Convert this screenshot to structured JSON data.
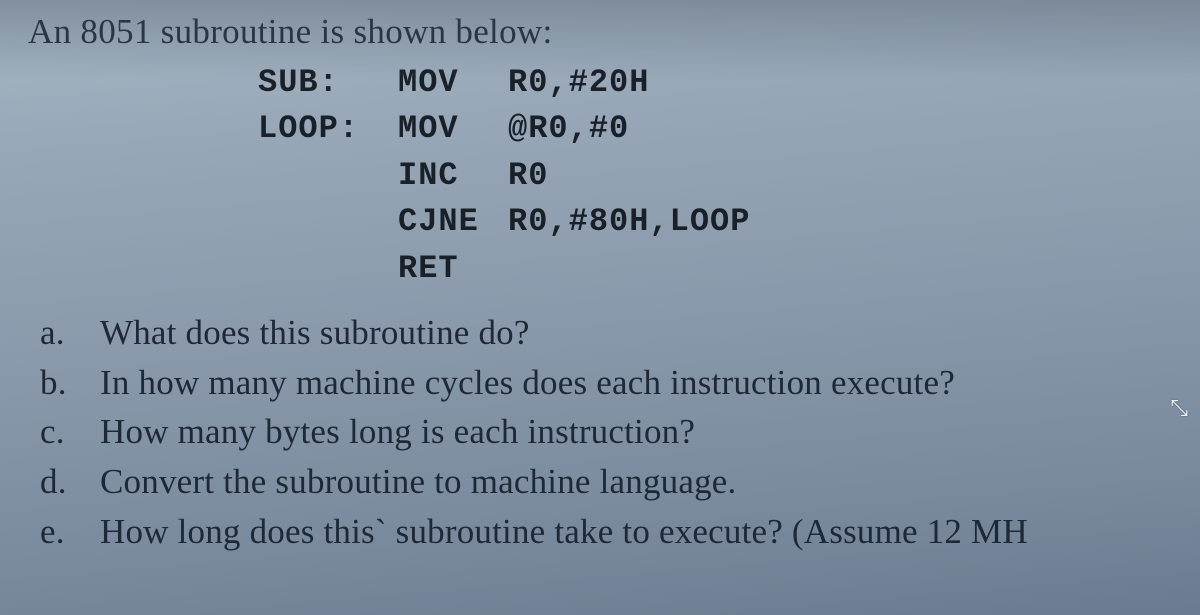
{
  "heading": "An 8051 subroutine is shown below:",
  "code": {
    "lines": [
      {
        "label": "SUB:",
        "op": "MOV",
        "arg": "R0,#20H"
      },
      {
        "label": "LOOP:",
        "op": "MOV",
        "arg": "@R0,#0"
      },
      {
        "label": "",
        "op": "INC",
        "arg": "R0"
      },
      {
        "label": "",
        "op": "CJNE",
        "arg": "R0,#80H,LOOP"
      },
      {
        "label": "",
        "op": "RET",
        "arg": ""
      }
    ]
  },
  "questions": [
    {
      "letter": "a.",
      "text": "What does this subroutine do?"
    },
    {
      "letter": "b.",
      "text": "In how many machine cycles does each instruction execute?"
    },
    {
      "letter": "c.",
      "text": "How many bytes long is each instruction?"
    },
    {
      "letter": "d.",
      "text": "Convert the subroutine to machine language."
    },
    {
      "letter": "e.",
      "text": "How long does this` subroutine take to execute? (Assume 12 MH"
    }
  ],
  "colors": {
    "bg_top": "#a8b8c5",
    "bg_bottom": "#6a7a90",
    "text": "#1a2028"
  }
}
